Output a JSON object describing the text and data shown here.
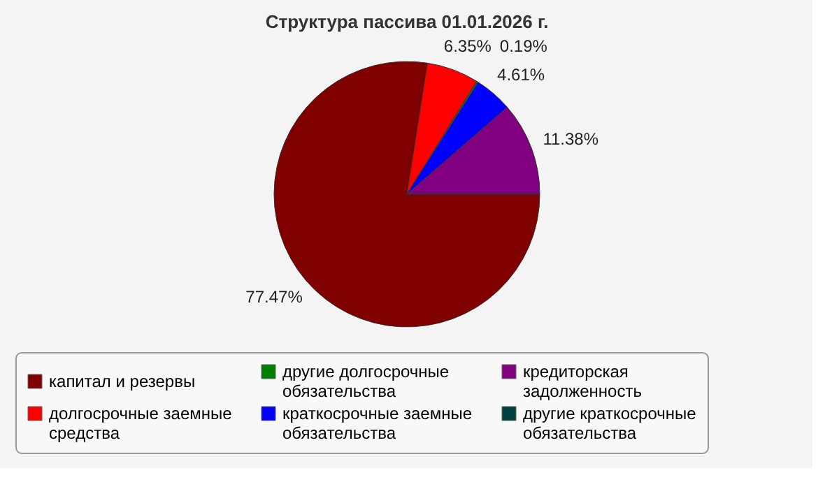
{
  "chart_data": {
    "type": "pie",
    "title": "Структура пассива 01.01.2026 г.",
    "categories": [
      "капитал и резервы",
      "долгосрочные заемные средства",
      "другие долгосрочные обязательства",
      "краткосрочные заемные обязательства",
      "кредиторская задолженность",
      "другие краткосрочные обязательства"
    ],
    "values": [
      77.47,
      6.35,
      0.19,
      4.61,
      11.38,
      0
    ],
    "colors": [
      "#800000",
      "#ff0000",
      "#008000",
      "#0000ff",
      "#800080",
      "#004040"
    ],
    "value_labels": [
      "77.47%",
      "6.35%",
      "0.19%",
      "4.61%",
      "11.38%",
      null
    ],
    "legend": "bottom"
  }
}
